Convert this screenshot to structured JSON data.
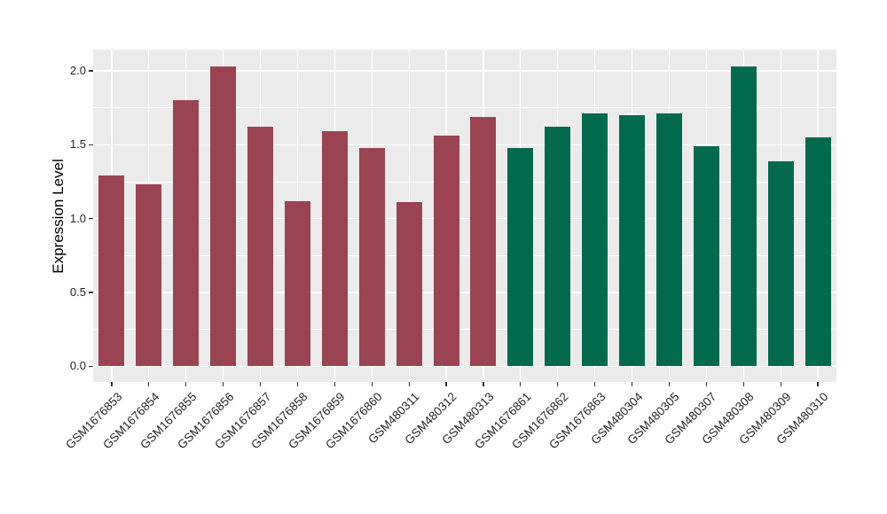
{
  "chart_data": {
    "type": "bar",
    "title": "",
    "xlabel": "",
    "ylabel": "Expression Level",
    "categories": [
      "GSM1676853",
      "GSM1676854",
      "GSM1676855",
      "GSM1676856",
      "GSM1676857",
      "GSM1676858",
      "GSM1676859",
      "GSM1676860",
      "GSM480311",
      "GSM480312",
      "GSM480313",
      "GSM1676861",
      "GSM1676862",
      "GSM1676863",
      "GSM480304",
      "GSM480305",
      "GSM480307",
      "GSM480308",
      "GSM480309",
      "GSM480310"
    ],
    "values": [
      1.29,
      1.23,
      1.8,
      2.03,
      1.62,
      1.12,
      1.59,
      1.48,
      1.11,
      1.56,
      1.69,
      1.48,
      1.62,
      1.71,
      1.7,
      1.71,
      1.49,
      2.03,
      1.39,
      1.55
    ],
    "groups": [
      "group1",
      "group1",
      "group1",
      "group1",
      "group1",
      "group1",
      "group1",
      "group1",
      "group1",
      "group1",
      "group1",
      "group2",
      "group2",
      "group2",
      "group2",
      "group2",
      "group2",
      "group2",
      "group2",
      "group2"
    ],
    "group_colors": {
      "group1": "#9A4452",
      "group2": "#046A4D"
    },
    "yticks": [
      "0.0",
      "0.5",
      "1.0",
      "1.5",
      "2.0"
    ],
    "ytick_values": [
      0.0,
      0.5,
      1.0,
      1.5,
      2.0
    ],
    "yminor_values": [
      0.25,
      0.75,
      1.25,
      1.75
    ],
    "ylim": [
      -0.11,
      2.14
    ],
    "grid": "on",
    "legend": "none",
    "panel_bg": "#EBEBEB",
    "grid_color": "#FFFFFF",
    "x_label_angle": 45
  }
}
